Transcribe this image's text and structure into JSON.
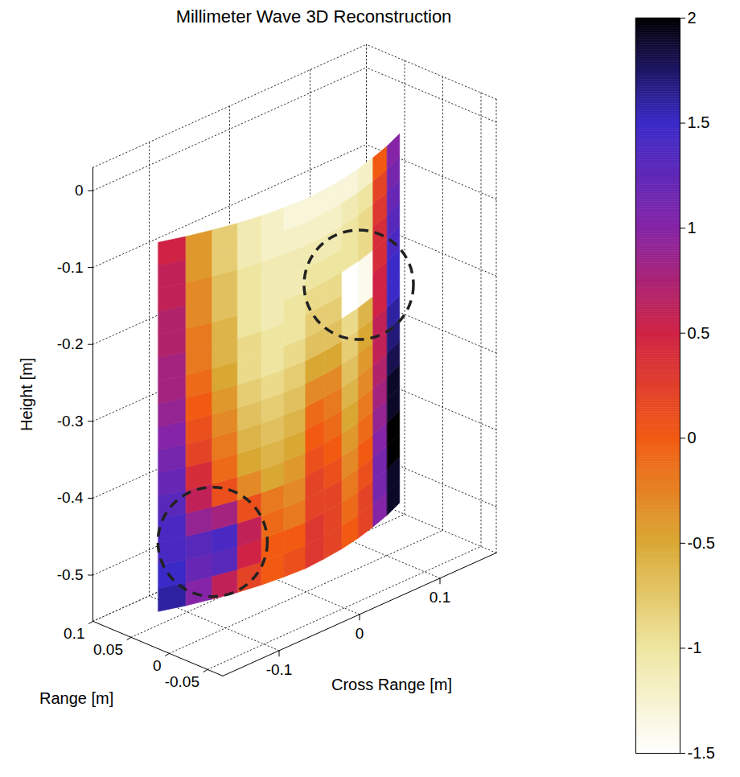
{
  "chart_data": {
    "type": "surface3d",
    "title": "Millimeter Wave 3D Reconstruction",
    "x_label": "Cross Range [m]",
    "y_label": "Range [m]",
    "z_label": "Height [m]",
    "xlim": [
      -0.17,
      0.17
    ],
    "xticks": [
      -0.1,
      0,
      0.1
    ],
    "ylim": [
      -0.07,
      0.1
    ],
    "yticks": [
      -0.05,
      0,
      0.05,
      0.1
    ],
    "zlim": [
      -0.56,
      0.03
    ],
    "zticks": [
      -0.5,
      -0.4,
      -0.3,
      -0.2,
      -0.1,
      0
    ],
    "grid": true,
    "surface": {
      "cross_range": [
        -0.15,
        -0.125,
        -0.1,
        -0.075,
        -0.05,
        -0.025,
        0,
        0.025,
        0.05,
        0.075,
        0.1,
        0.125,
        0.15
      ],
      "range": [
        0.035,
        0.025,
        0.017,
        0.01,
        0.005,
        0.002,
        0,
        0.002,
        0.005,
        0.01,
        0.017,
        0.025,
        0.035
      ],
      "height": [
        -0.53,
        -0.5,
        -0.47,
        -0.44,
        -0.41,
        -0.38,
        -0.35,
        -0.32,
        -0.29,
        -0.26,
        -0.23,
        -0.2,
        -0.17,
        -0.14,
        -0.11,
        -0.08,
        -0.05
      ],
      "values": [
        [
          1.6,
          1.0,
          0.6,
          0.2,
          0.0,
          0.1,
          0.3,
          0.2,
          0.0,
          0.2,
          1.0,
          1.9
        ],
        [
          1.5,
          1.2,
          1.3,
          0.5,
          0.0,
          0.0,
          0.3,
          0.2,
          -0.1,
          0.2,
          1.1,
          1.9
        ],
        [
          1.4,
          1.3,
          1.4,
          0.6,
          -0.1,
          -0.2,
          0.2,
          0.2,
          -0.2,
          0.1,
          1.1,
          2.0
        ],
        [
          1.4,
          0.9,
          0.8,
          0.1,
          -0.2,
          -0.3,
          0.2,
          0.1,
          -0.3,
          0.0,
          1.0,
          2.0
        ],
        [
          1.3,
          0.6,
          0.1,
          -0.3,
          -0.5,
          -0.4,
          0.1,
          0.0,
          -0.4,
          -0.1,
          0.9,
          1.9
        ],
        [
          1.2,
          0.4,
          -0.1,
          -0.5,
          -0.6,
          -0.5,
          0.0,
          -0.1,
          -0.5,
          -0.2,
          0.8,
          1.9
        ],
        [
          1.1,
          0.2,
          -0.2,
          -0.6,
          -0.7,
          -0.6,
          -0.1,
          -0.2,
          -0.6,
          -0.3,
          0.7,
          1.8
        ],
        [
          1.0,
          0.1,
          -0.3,
          -0.7,
          -0.8,
          -0.7,
          -0.3,
          -0.3,
          -0.7,
          -0.4,
          0.6,
          1.7
        ],
        [
          0.9,
          0.0,
          -0.4,
          -0.8,
          -0.9,
          -0.8,
          -0.5,
          -0.5,
          -0.8,
          -0.5,
          0.6,
          1.6
        ],
        [
          0.8,
          -0.1,
          -0.5,
          -0.9,
          -1.0,
          -0.9,
          -0.7,
          -0.7,
          -0.9,
          -0.6,
          0.5,
          1.5
        ],
        [
          0.8,
          -0.2,
          -0.6,
          -0.9,
          -1.0,
          -1.0,
          -0.8,
          -0.8,
          -1.5,
          -1.4,
          0.5,
          1.5
        ],
        [
          0.7,
          -0.2,
          -0.6,
          -1.0,
          -1.1,
          -1.0,
          -0.9,
          -0.9,
          -1.5,
          -1.4,
          0.4,
          1.4
        ],
        [
          0.7,
          -0.3,
          -0.7,
          -1.0,
          -1.1,
          -1.1,
          -1.0,
          -1.0,
          -1.0,
          -0.9,
          0.4,
          1.3
        ],
        [
          0.6,
          -0.3,
          -0.7,
          -1.0,
          -1.1,
          -1.1,
          -1.1,
          -1.1,
          -1.0,
          -0.9,
          0.3,
          1.2
        ],
        [
          0.6,
          -0.4,
          -0.8,
          -1.1,
          -1.2,
          -1.2,
          -1.2,
          -1.2,
          -1.1,
          -1.0,
          0.2,
          1.1
        ],
        [
          0.5,
          -0.4,
          -0.8,
          -1.1,
          -1.2,
          -1.3,
          -1.3,
          -1.3,
          -1.3,
          -1.2,
          0.0,
          1.0
        ]
      ]
    },
    "colorbar": {
      "range": [
        -1.5,
        2
      ],
      "ticks": [
        -1.5,
        -1,
        -0.5,
        0,
        0.5,
        1,
        1.5,
        2
      ]
    },
    "highlights": [
      {
        "cross_range": 0.075,
        "range": 0.01,
        "height": -0.2
      },
      {
        "cross_range": -0.1,
        "range": 0.017,
        "height": -0.455
      }
    ]
  }
}
